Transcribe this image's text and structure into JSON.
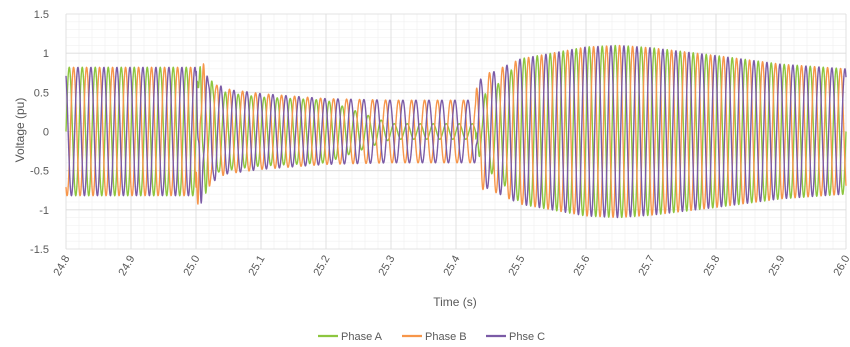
{
  "chart_data": {
    "type": "line",
    "title": "",
    "xlabel": "Time (s)",
    "ylabel": "Voltage (pu)",
    "xlim": [
      24.8,
      26.0
    ],
    "ylim": [
      -1.5,
      1.5
    ],
    "x_ticks": [
      "24.8",
      "24.9",
      "25.0",
      "25.1",
      "25.2",
      "25.3",
      "25.4",
      "25.5",
      "25.6",
      "25.7",
      "25.8",
      "25.9",
      "26.0"
    ],
    "y_ticks": [
      "1.5",
      "1",
      "0.5",
      "0",
      "-0.5",
      "-1",
      "-1.5"
    ],
    "grid": true,
    "legend_position": "bottom",
    "frequency_hz": 50,
    "envelope": {
      "time": [
        24.8,
        25.0,
        25.04,
        25.1,
        25.2,
        25.3,
        25.43,
        25.44,
        25.5,
        25.6,
        25.65,
        25.7,
        25.8,
        25.9,
        26.0
      ],
      "amplitude": [
        0.82,
        0.82,
        0.5,
        0.44,
        0.4,
        0.4,
        0.4,
        0.7,
        0.93,
        1.08,
        1.1,
        1.07,
        0.97,
        0.86,
        0.8
      ]
    },
    "series": [
      {
        "name": "Phase A",
        "color": "#8DC63F",
        "phase_deg": 0,
        "scale": [
          1.0,
          1.0,
          1.0,
          1.0,
          1.0,
          0.25,
          0.25,
          0.6,
          1.0,
          1.0,
          1.0,
          1.0,
          1.0,
          1.0,
          1.0
        ]
      },
      {
        "name": "Phase B",
        "color": "#F7964A",
        "phase_deg": -120,
        "scale": [
          1.0,
          1.0,
          1.1,
          1.1,
          1.05,
          1.0,
          1.0,
          1.0,
          1.0,
          1.0,
          1.0,
          1.0,
          1.0,
          1.0,
          1.0
        ]
      },
      {
        "name": "Phse C",
        "color": "#7B5BA6",
        "phase_deg": 120,
        "scale": [
          1.0,
          1.0,
          1.1,
          1.1,
          1.05,
          1.0,
          1.0,
          1.0,
          1.0,
          1.0,
          1.0,
          1.0,
          1.0,
          1.0,
          1.0
        ]
      }
    ]
  }
}
